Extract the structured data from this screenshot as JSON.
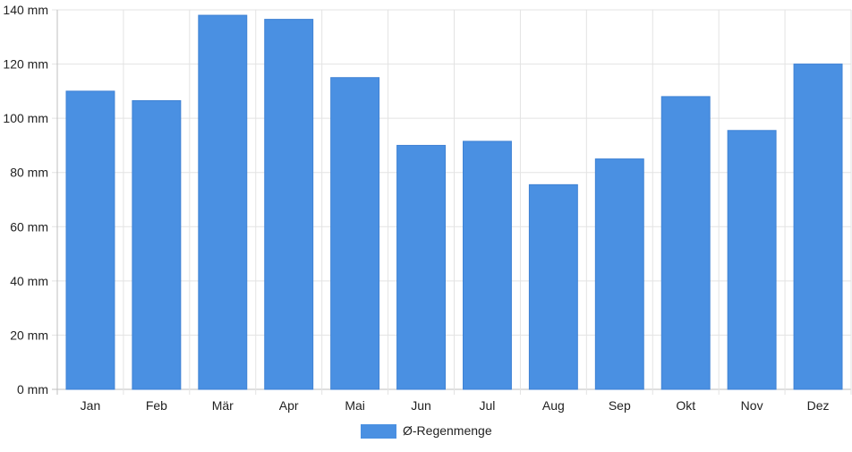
{
  "chart_data": {
    "type": "bar",
    "categories": [
      "Jan",
      "Feb",
      "Mär",
      "Apr",
      "Mai",
      "Jun",
      "Jul",
      "Aug",
      "Sep",
      "Okt",
      "Nov",
      "Dez"
    ],
    "series": [
      {
        "name": "Ø-Regenmenge",
        "values": [
          110,
          106.5,
          138,
          136.5,
          115,
          90,
          91.5,
          75.5,
          85,
          108,
          95.5,
          120
        ],
        "color": "#4a90e2"
      }
    ],
    "y_ticks": [
      "0 mm",
      "20 mm",
      "40 mm",
      "60 mm",
      "80 mm",
      "100 mm",
      "120 mm",
      "140 mm"
    ],
    "ylim": [
      0,
      140
    ],
    "grid": true,
    "legend": "bottom-center"
  }
}
